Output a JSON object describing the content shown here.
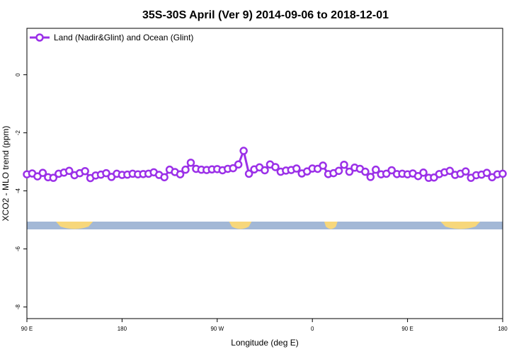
{
  "chart_data": {
    "type": "line",
    "title": "35S-30S April (Ver 9)   2014-09-06 to 2018-12-01",
    "xlabel": "Longitude (deg E)",
    "ylabel": "XCO2 - MLO trend (ppm)",
    "xlim": [
      90,
      450
    ],
    "ylim": [
      -8.4,
      1.6
    ],
    "x_ticks": [
      {
        "value": 90,
        "label": "90 E"
      },
      {
        "value": 162,
        "label": "180"
      },
      {
        "value": 234,
        "label": "90 W"
      },
      {
        "value": 306,
        "label": "0"
      },
      {
        "value": 378,
        "label": "90 E"
      },
      {
        "value": 450,
        "label": "180"
      }
    ],
    "y_ticks": [
      {
        "value": 0,
        "label": "0"
      },
      {
        "value": -2,
        "label": "-2"
      },
      {
        "value": -4,
        "label": "-4"
      },
      {
        "value": -6,
        "label": "-6"
      },
      {
        "value": -8,
        "label": "-8"
      }
    ],
    "grid": false,
    "legend_position": "top-left",
    "series": [
      {
        "name": "Land (Nadir&Glint) and Ocean (Glint)",
        "color": "#9b30e8",
        "x": [
          90,
          94,
          98,
          102,
          106,
          110,
          114,
          118,
          122,
          126,
          130,
          134,
          138,
          142,
          146,
          150,
          154,
          158,
          162,
          166,
          170,
          174,
          178,
          182,
          186,
          190,
          194,
          198,
          202,
          206,
          210,
          214,
          218,
          222,
          226,
          230,
          234,
          238,
          242,
          246,
          250,
          254,
          258,
          262,
          266,
          270,
          274,
          278,
          282,
          286,
          290,
          294,
          298,
          302,
          306,
          310,
          314,
          318,
          322,
          326,
          330,
          334,
          338,
          342,
          346,
          350,
          354,
          358,
          362,
          366,
          370,
          374,
          378,
          382,
          386,
          390,
          394,
          398,
          402,
          406,
          410,
          414,
          418,
          422,
          426,
          430,
          434,
          438,
          442,
          446,
          450
        ],
        "values": [
          -3.43,
          -3.4,
          -3.5,
          -3.38,
          -3.53,
          -3.55,
          -3.41,
          -3.37,
          -3.31,
          -3.46,
          -3.39,
          -3.32,
          -3.56,
          -3.47,
          -3.44,
          -3.39,
          -3.52,
          -3.41,
          -3.45,
          -3.44,
          -3.41,
          -3.43,
          -3.42,
          -3.41,
          -3.36,
          -3.45,
          -3.53,
          -3.27,
          -3.35,
          -3.43,
          -3.27,
          -3.03,
          -3.24,
          -3.27,
          -3.28,
          -3.26,
          -3.25,
          -3.29,
          -3.24,
          -3.22,
          -3.09,
          -2.62,
          -3.41,
          -3.26,
          -3.19,
          -3.29,
          -3.09,
          -3.18,
          -3.34,
          -3.3,
          -3.28,
          -3.23,
          -3.4,
          -3.33,
          -3.23,
          -3.24,
          -3.13,
          -3.42,
          -3.39,
          -3.31,
          -3.1,
          -3.34,
          -3.2,
          -3.24,
          -3.34,
          -3.52,
          -3.27,
          -3.43,
          -3.41,
          -3.29,
          -3.42,
          -3.41,
          -3.43,
          -3.4,
          -3.49,
          -3.37,
          -3.55,
          -3.54,
          -3.42,
          -3.36,
          -3.31,
          -3.45,
          -3.41,
          -3.33,
          -3.55,
          -3.46,
          -3.44,
          -3.38,
          -3.53,
          -3.43,
          -3.41
        ]
      }
    ],
    "map_strip": {
      "ocean_color": "#a3b8d6",
      "land_color": "#f7d77b",
      "land_ranges": [
        [
          112,
          140
        ],
        [
          243,
          260
        ],
        [
          315,
          325
        ],
        [
          403,
          433
        ]
      ]
    }
  }
}
